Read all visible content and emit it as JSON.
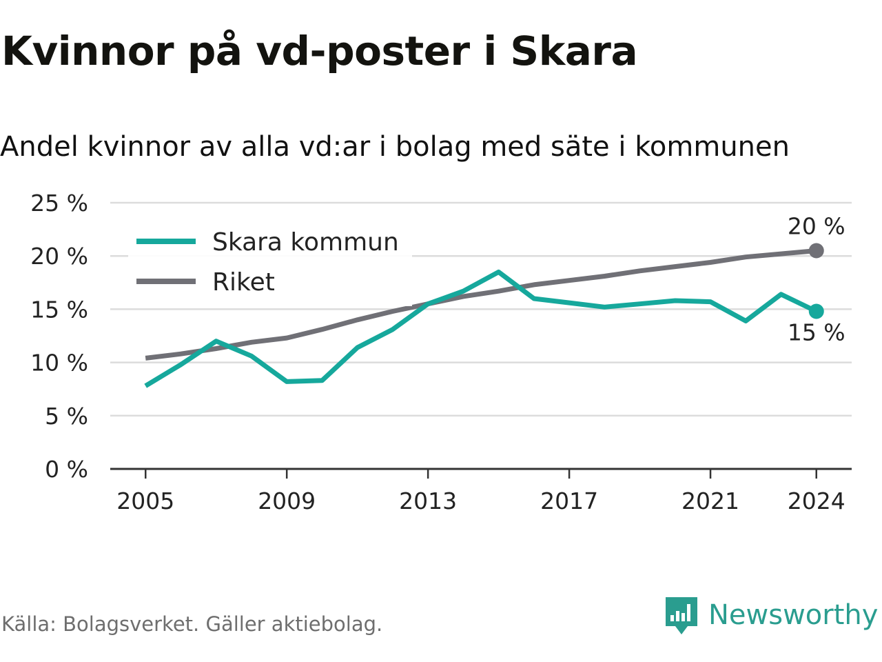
{
  "title": "Kvinnor på vd-poster i Skara",
  "subtitle": "Andel kvinnor av alla vd:ar i bolag med säte i kommunen",
  "source": "Källa: Bolagsverket. Gäller aktiebolag.",
  "brand": {
    "name": "Newsworthy",
    "logo_icon": "bar-chart-flag-icon",
    "color": "#2a9d8f"
  },
  "chart_data": {
    "type": "line",
    "x_ticks": [
      2005,
      2009,
      2013,
      2017,
      2021,
      2024
    ],
    "xlim": [
      2004,
      2025
    ],
    "ylim": [
      0,
      25
    ],
    "y_ticks": [
      0,
      5,
      10,
      15,
      20,
      25
    ],
    "y_tick_labels": [
      "0 %",
      "5 %",
      "10 %",
      "15 %",
      "20 %",
      "25 %"
    ],
    "grid": true,
    "legend_placement": "top-left",
    "series": [
      {
        "name": "Skara kommun",
        "color": "#16a89c",
        "x": [
          2005,
          2006,
          2007,
          2008,
          2009,
          2010,
          2011,
          2012,
          2013,
          2014,
          2015,
          2016,
          2017,
          2018,
          2019,
          2020,
          2021,
          2022,
          2023,
          2024
        ],
        "values": [
          7.8,
          9.8,
          12.0,
          10.6,
          8.2,
          8.3,
          11.4,
          13.1,
          15.5,
          16.7,
          18.5,
          16.0,
          15.6,
          15.2,
          15.5,
          15.8,
          15.7,
          13.9,
          16.4,
          14.8
        ],
        "end_label": "15 %"
      },
      {
        "name": "Riket",
        "color": "#707076",
        "x": [
          2005,
          2006,
          2007,
          2008,
          2009,
          2010,
          2011,
          2012,
          2013,
          2014,
          2015,
          2016,
          2017,
          2018,
          2019,
          2020,
          2021,
          2022,
          2023,
          2024
        ],
        "values": [
          10.4,
          10.8,
          11.3,
          11.9,
          12.3,
          13.1,
          14.0,
          14.8,
          15.5,
          16.2,
          16.7,
          17.3,
          17.7,
          18.1,
          18.6,
          19.0,
          19.4,
          19.9,
          20.2,
          20.5
        ],
        "end_label": "20 %"
      }
    ]
  }
}
